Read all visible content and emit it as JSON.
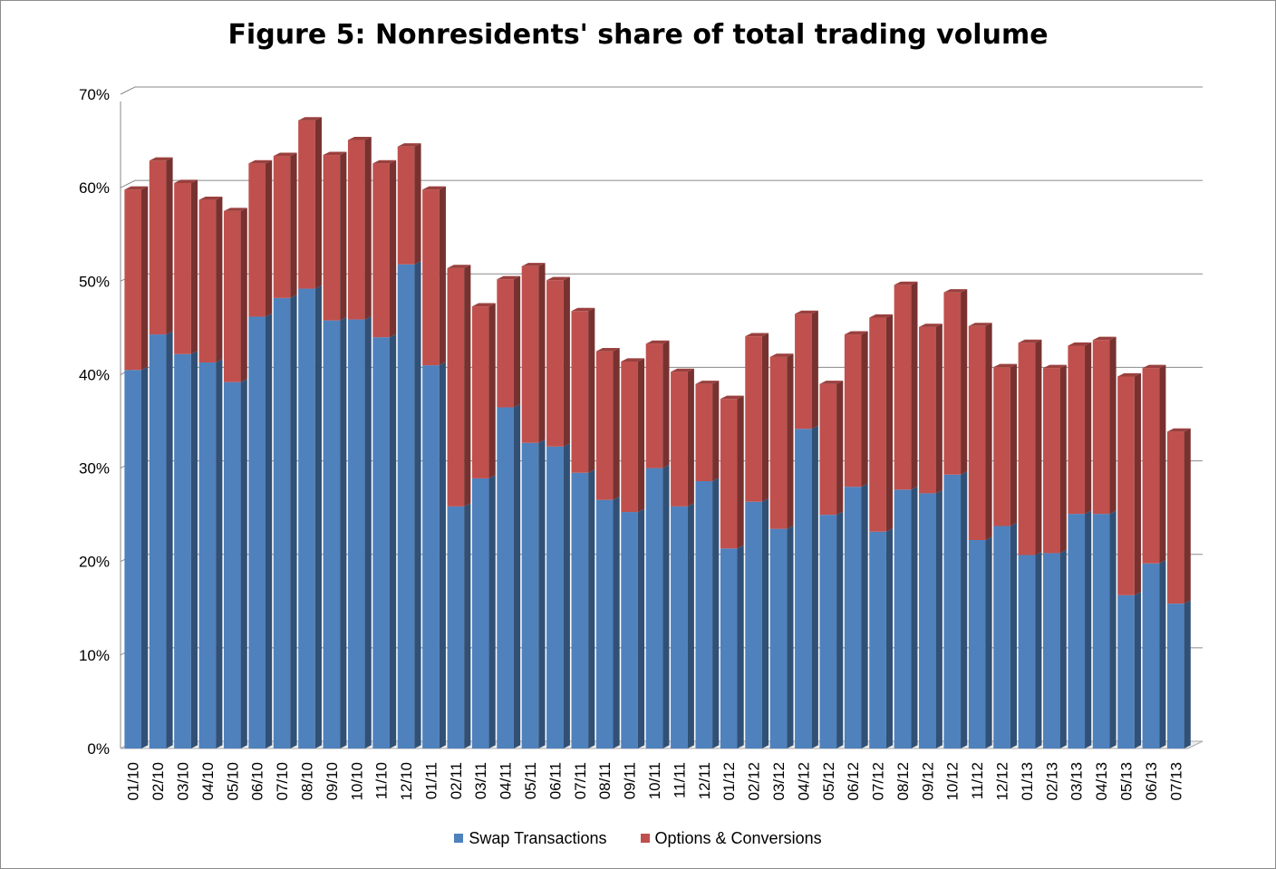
{
  "chart_data": {
    "type": "bar",
    "stacked": true,
    "title": "Figure 5: Nonresidents' share of total trading volume",
    "xlabel": "",
    "ylabel": "",
    "ylim": [
      0,
      0.7
    ],
    "yticks": [
      "0%",
      "10%",
      "20%",
      "30%",
      "40%",
      "50%",
      "60%",
      "70%"
    ],
    "grid": true,
    "legend_position": "bottom",
    "categories": [
      "01/10",
      "02/10",
      "03/10",
      "04/10",
      "05/10",
      "06/10",
      "07/10",
      "08/10",
      "09/10",
      "10/10",
      "11/10",
      "12/10",
      "01/11",
      "02/11",
      "03/11",
      "04/11",
      "05/11",
      "06/11",
      "07/11",
      "08/11",
      "09/11",
      "10/11",
      "11/11",
      "12/11",
      "01/12",
      "02/12",
      "03/12",
      "04/12",
      "05/12",
      "06/12",
      "07/12",
      "08/12",
      "09/12",
      "10/12",
      "11/12",
      "12/12",
      "01/13",
      "02/13",
      "03/13",
      "04/13",
      "05/13",
      "06/13",
      "07/13"
    ],
    "series": [
      {
        "name": "Swap Transactions",
        "color": "#4f81bd",
        "values": [
          0.405,
          0.443,
          0.422,
          0.413,
          0.392,
          0.462,
          0.482,
          0.492,
          0.458,
          0.459,
          0.44,
          0.518,
          0.41,
          0.259,
          0.289,
          0.365,
          0.327,
          0.323,
          0.295,
          0.266,
          0.253,
          0.3,
          0.259,
          0.286,
          0.214,
          0.264,
          0.235,
          0.342,
          0.25,
          0.28,
          0.232,
          0.277,
          0.273,
          0.293,
          0.223,
          0.238,
          0.207,
          0.209,
          0.251,
          0.251,
          0.164,
          0.198,
          0.155
        ]
      },
      {
        "name": "Options & Conversions",
        "color": "#c0504d",
        "values": [
          0.193,
          0.186,
          0.183,
          0.174,
          0.183,
          0.164,
          0.152,
          0.18,
          0.177,
          0.192,
          0.186,
          0.126,
          0.188,
          0.255,
          0.184,
          0.137,
          0.189,
          0.178,
          0.173,
          0.159,
          0.161,
          0.133,
          0.144,
          0.104,
          0.16,
          0.177,
          0.184,
          0.123,
          0.14,
          0.163,
          0.229,
          0.219,
          0.178,
          0.195,
          0.229,
          0.17,
          0.227,
          0.198,
          0.18,
          0.186,
          0.234,
          0.209,
          0.184
        ]
      }
    ]
  }
}
